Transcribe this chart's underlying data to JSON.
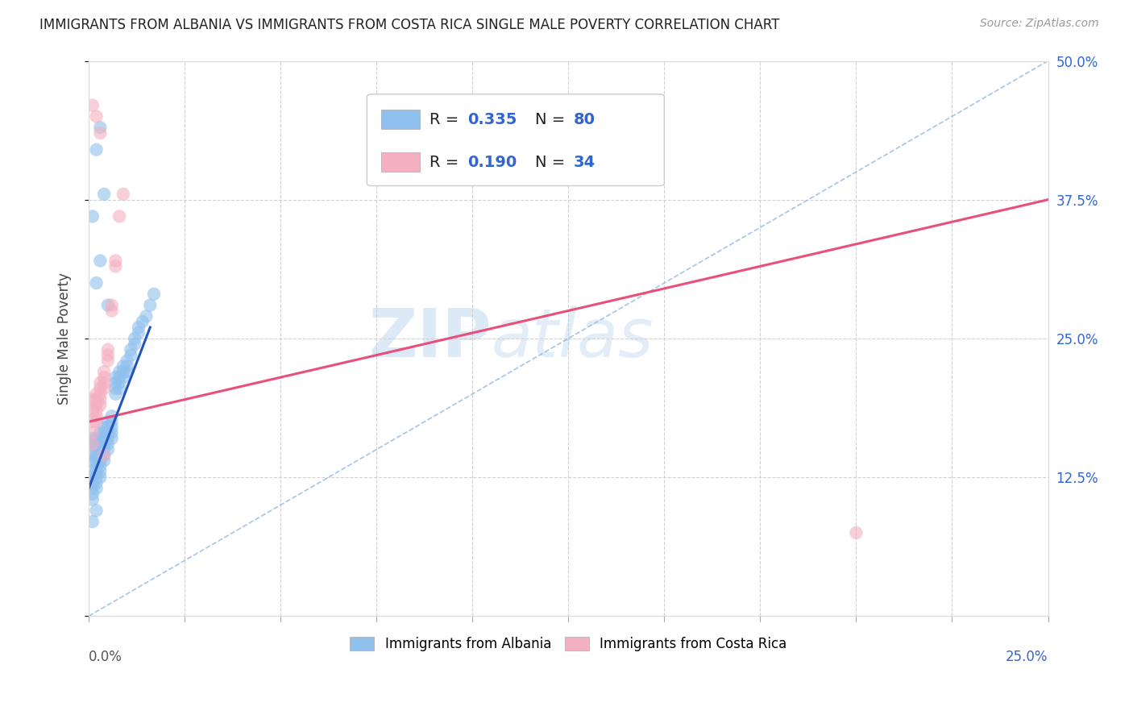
{
  "title": "IMMIGRANTS FROM ALBANIA VS IMMIGRANTS FROM COSTA RICA SINGLE MALE POVERTY CORRELATION CHART",
  "source": "Source: ZipAtlas.com",
  "ylabel": "Single Male Poverty",
  "xlim": [
    0.0,
    0.25
  ],
  "ylim": [
    0.0,
    0.5
  ],
  "albania_color": "#90c0ee",
  "costa_rica_color": "#f4afc0",
  "albania_line_color": "#2255bb",
  "costa_rica_line_color": "#e8507a",
  "diag_line_color": "#8ab0dd",
  "albania_R": 0.335,
  "albania_N": 80,
  "costa_rica_R": 0.19,
  "costa_rica_N": 34,
  "legend_label_1": "Immigrants from Albania",
  "legend_label_2": "Immigrants from Costa Rica",
  "albania_scatter_x": [
    0.001,
    0.001,
    0.001,
    0.001,
    0.001,
    0.001,
    0.001,
    0.001,
    0.001,
    0.001,
    0.002,
    0.002,
    0.002,
    0.002,
    0.002,
    0.002,
    0.002,
    0.002,
    0.002,
    0.002,
    0.003,
    0.003,
    0.003,
    0.003,
    0.003,
    0.003,
    0.003,
    0.003,
    0.003,
    0.004,
    0.004,
    0.004,
    0.004,
    0.004,
    0.004,
    0.004,
    0.005,
    0.005,
    0.005,
    0.005,
    0.005,
    0.005,
    0.006,
    0.006,
    0.006,
    0.006,
    0.006,
    0.007,
    0.007,
    0.007,
    0.007,
    0.008,
    0.008,
    0.008,
    0.008,
    0.009,
    0.009,
    0.009,
    0.01,
    0.01,
    0.01,
    0.011,
    0.011,
    0.012,
    0.012,
    0.013,
    0.013,
    0.014,
    0.015,
    0.016,
    0.017,
    0.002,
    0.003,
    0.001,
    0.004,
    0.002,
    0.003,
    0.005,
    0.002,
    0.001
  ],
  "albania_scatter_y": [
    0.155,
    0.16,
    0.145,
    0.14,
    0.13,
    0.125,
    0.12,
    0.115,
    0.11,
    0.105,
    0.16,
    0.155,
    0.15,
    0.145,
    0.14,
    0.135,
    0.13,
    0.125,
    0.12,
    0.115,
    0.165,
    0.16,
    0.155,
    0.15,
    0.145,
    0.14,
    0.135,
    0.13,
    0.125,
    0.17,
    0.165,
    0.16,
    0.155,
    0.15,
    0.145,
    0.14,
    0.175,
    0.17,
    0.165,
    0.16,
    0.155,
    0.15,
    0.18,
    0.175,
    0.17,
    0.165,
    0.16,
    0.215,
    0.21,
    0.205,
    0.2,
    0.22,
    0.215,
    0.21,
    0.205,
    0.225,
    0.22,
    0.215,
    0.23,
    0.225,
    0.22,
    0.24,
    0.235,
    0.25,
    0.245,
    0.26,
    0.255,
    0.265,
    0.27,
    0.28,
    0.29,
    0.3,
    0.32,
    0.36,
    0.38,
    0.42,
    0.44,
    0.28,
    0.095,
    0.085
  ],
  "costa_rica_scatter_x": [
    0.001,
    0.001,
    0.001,
    0.001,
    0.001,
    0.002,
    0.002,
    0.002,
    0.002,
    0.002,
    0.002,
    0.003,
    0.003,
    0.003,
    0.003,
    0.003,
    0.004,
    0.004,
    0.004,
    0.004,
    0.005,
    0.005,
    0.005,
    0.006,
    0.006,
    0.007,
    0.007,
    0.008,
    0.009,
    0.2,
    0.001,
    0.002,
    0.003,
    0.004
  ],
  "costa_rica_scatter_y": [
    0.195,
    0.185,
    0.175,
    0.165,
    0.155,
    0.2,
    0.195,
    0.19,
    0.185,
    0.18,
    0.175,
    0.21,
    0.205,
    0.2,
    0.195,
    0.19,
    0.22,
    0.215,
    0.21,
    0.205,
    0.24,
    0.235,
    0.23,
    0.28,
    0.275,
    0.32,
    0.315,
    0.36,
    0.38,
    0.075,
    0.46,
    0.45,
    0.435,
    0.145
  ],
  "alb_line_x0": 0.0,
  "alb_line_x1": 0.016,
  "alb_line_y0": 0.115,
  "alb_line_y1": 0.26,
  "cr_line_x0": 0.0,
  "cr_line_x1": 0.25,
  "cr_line_y0": 0.175,
  "cr_line_y1": 0.375
}
